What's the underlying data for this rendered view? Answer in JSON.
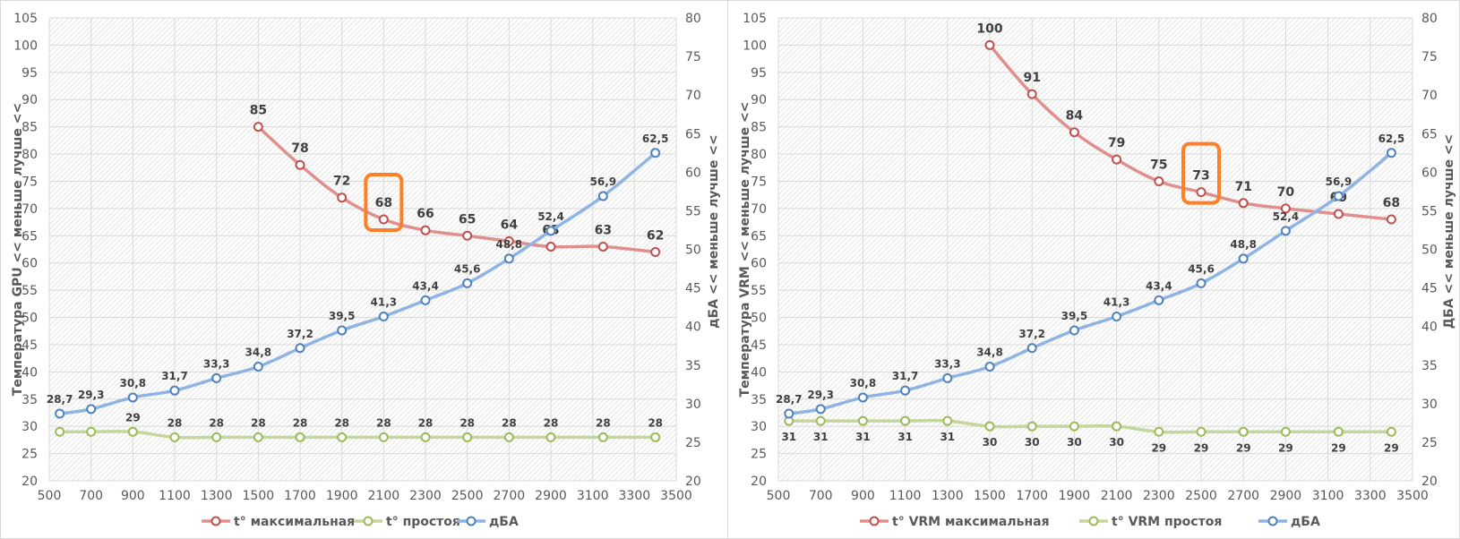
{
  "chart_data": [
    {
      "type": "line",
      "title": "",
      "xlabel": "",
      "ylabel": "Температура GPU << меньше лучше <<",
      "y2label": "дБА <<  меньше лучше <<",
      "xlim": [
        500,
        3500
      ],
      "ylim": [
        20,
        105
      ],
      "y2lim": [
        20,
        80
      ],
      "x_ticks": [
        "500",
        "700",
        "900",
        "1100",
        "1300",
        "1500",
        "1700",
        "1900",
        "2100",
        "2300",
        "2500",
        "2700",
        "2900",
        "3100",
        "3300",
        "3500"
      ],
      "y_ticks": [
        "20",
        "25",
        "30",
        "35",
        "40",
        "45",
        "50",
        "55",
        "60",
        "65",
        "70",
        "75",
        "80",
        "85",
        "90",
        "95",
        "100",
        "105"
      ],
      "y2_ticks": [
        "20",
        "25",
        "30",
        "35",
        "40",
        "45",
        "50",
        "55",
        "60",
        "65",
        "70",
        "75",
        "80"
      ],
      "grid": true,
      "legend_position": "bottom",
      "highlight": {
        "series": "t° максимальная",
        "x": 2100,
        "color": "#ff7f27"
      },
      "series": [
        {
          "name": "t° максимальная",
          "axis": "left",
          "color": "#e0908c",
          "marker_color": "#c0504d",
          "label_style": "big",
          "label_pos": "above",
          "x": [
            1500,
            1700,
            1900,
            2100,
            2300,
            2500,
            2700,
            2900,
            3150,
            3400
          ],
          "values": [
            85,
            78,
            72,
            68,
            66,
            65,
            64,
            63,
            63,
            62
          ],
          "labels": [
            "85",
            "78",
            "72",
            "68",
            "66",
            "65",
            "64",
            "63",
            "63",
            "62"
          ]
        },
        {
          "name": "t° простоя",
          "axis": "left",
          "color": "#c3d69b",
          "marker_color": "#9bbb59",
          "label_style": "small",
          "label_pos": "above",
          "x": [
            550,
            700,
            900,
            1100,
            1300,
            1500,
            1700,
            1900,
            2100,
            2300,
            2500,
            2700,
            2900,
            3150,
            3400
          ],
          "values": [
            29,
            29,
            29,
            28,
            28,
            28,
            28,
            28,
            28,
            28,
            28,
            28,
            28,
            28,
            28
          ],
          "labels": [
            "",
            "",
            "29",
            "28",
            "28",
            "28",
            "28",
            "28",
            "28",
            "28",
            "28",
            "28",
            "28",
            "28",
            "28"
          ]
        },
        {
          "name": "дБА",
          "axis": "right",
          "color": "#8eb4e3",
          "marker_color": "#4f81bd",
          "label_style": "small",
          "label_pos": "above",
          "x": [
            550,
            700,
            900,
            1100,
            1300,
            1500,
            1700,
            1900,
            2100,
            2300,
            2500,
            2700,
            2900,
            3150,
            3400
          ],
          "values": [
            28.7,
            29.3,
            30.8,
            31.7,
            33.3,
            34.8,
            37.2,
            39.5,
            41.3,
            43.4,
            45.6,
            48.8,
            52.4,
            56.9,
            62.5
          ],
          "labels": [
            "28,7",
            "29,3",
            "30,8",
            "31,7",
            "33,3",
            "34,8",
            "37,2",
            "39,5",
            "41,3",
            "43,4",
            "45,6",
            "48,8",
            "52,4",
            "56,9",
            "62,5"
          ]
        }
      ]
    },
    {
      "type": "line",
      "title": "",
      "xlabel": "",
      "ylabel": "Температура VRM << меньше лучше <<",
      "y2label": "ДБА <<  меньше лучше <<",
      "xlim": [
        500,
        3500
      ],
      "ylim": [
        20,
        105
      ],
      "y2lim": [
        20,
        80
      ],
      "x_ticks": [
        "500",
        "700",
        "900",
        "1100",
        "1300",
        "1500",
        "1700",
        "1900",
        "2100",
        "2300",
        "2500",
        "2700",
        "2900",
        "3100",
        "3300",
        "3500"
      ],
      "y_ticks": [
        "20",
        "25",
        "30",
        "35",
        "40",
        "45",
        "50",
        "55",
        "60",
        "65",
        "70",
        "75",
        "80",
        "85",
        "90",
        "95",
        "100",
        "105"
      ],
      "y2_ticks": [
        "20",
        "25",
        "30",
        "35",
        "40",
        "45",
        "50",
        "55",
        "60",
        "65",
        "70",
        "75",
        "80"
      ],
      "grid": true,
      "legend_position": "bottom",
      "highlight": {
        "series": "t° VRM максимальная",
        "x": 2500,
        "color": "#ff7f27"
      },
      "series": [
        {
          "name": "t° VRM максимальная",
          "axis": "left",
          "color": "#e0908c",
          "marker_color": "#c0504d",
          "label_style": "big",
          "label_pos": "above",
          "x": [
            1500,
            1700,
            1900,
            2100,
            2300,
            2500,
            2700,
            2900,
            3150,
            3400
          ],
          "values": [
            100,
            91,
            84,
            79,
            75,
            73,
            71,
            70,
            69,
            68
          ],
          "labels": [
            "100",
            "91",
            "84",
            "79",
            "75",
            "73",
            "71",
            "70",
            "69",
            "68"
          ]
        },
        {
          "name": "t° VRM простоя",
          "axis": "left",
          "color": "#c3d69b",
          "marker_color": "#9bbb59",
          "label_style": "small",
          "label_pos": "below",
          "x": [
            550,
            700,
            900,
            1100,
            1300,
            1500,
            1700,
            1900,
            2100,
            2300,
            2500,
            2700,
            2900,
            3150,
            3400
          ],
          "values": [
            31,
            31,
            31,
            31,
            31,
            30,
            30,
            30,
            30,
            29,
            29,
            29,
            29,
            29,
            29
          ],
          "labels": [
            "31",
            "31",
            "31",
            "31",
            "31",
            "30",
            "30",
            "30",
            "30",
            "29",
            "29",
            "29",
            "29",
            "29",
            "29"
          ]
        },
        {
          "name": "дБА",
          "axis": "right",
          "color": "#8eb4e3",
          "marker_color": "#4f81bd",
          "label_style": "small",
          "label_pos": "above",
          "x": [
            550,
            700,
            900,
            1100,
            1300,
            1500,
            1700,
            1900,
            2100,
            2300,
            2500,
            2700,
            2900,
            3150,
            3400
          ],
          "values": [
            28.7,
            29.3,
            30.8,
            31.7,
            33.3,
            34.8,
            37.2,
            39.5,
            41.3,
            43.4,
            45.6,
            48.8,
            52.4,
            56.9,
            62.5
          ],
          "labels": [
            "28,7",
            "29,3",
            "30,8",
            "31,7",
            "33,3",
            "34,8",
            "37,2",
            "39,5",
            "41,3",
            "43,4",
            "45,6",
            "48,8",
            "52,4",
            "56,9",
            "62,5"
          ]
        }
      ]
    }
  ]
}
